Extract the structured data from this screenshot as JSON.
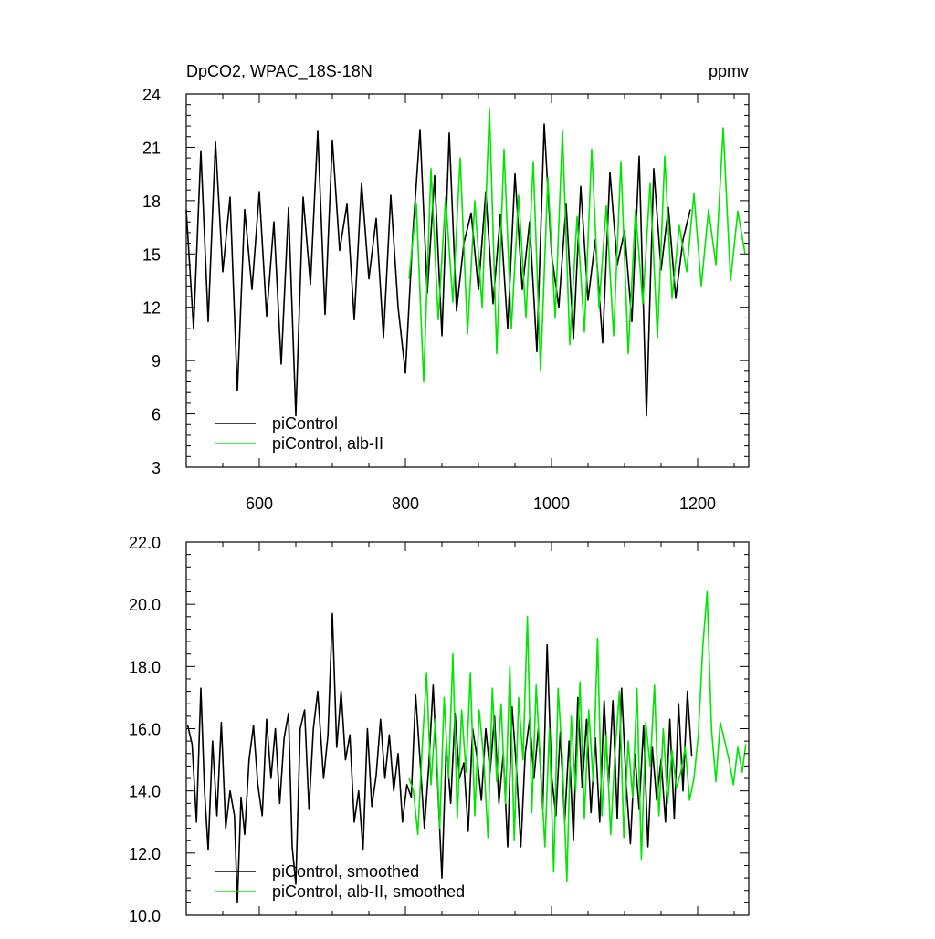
{
  "chart_data": [
    {
      "type": "line",
      "title": "DpCO2, WPAC_18S-18N",
      "units": "ppmv",
      "xlabel": "",
      "ylabel": "",
      "xlim": [
        500,
        1270
      ],
      "ylim": [
        3,
        24
      ],
      "xticks": [
        600,
        800,
        1000,
        1200
      ],
      "xtick_labels": [
        "600",
        "800",
        "1000",
        "1200"
      ],
      "yticks": [
        3,
        6,
        9,
        12,
        15,
        18,
        21,
        24
      ],
      "ytick_labels": [
        "3",
        "6",
        "9",
        "12",
        "15",
        "18",
        "21",
        "24"
      ],
      "legend_position": "bottom-left",
      "series": [
        {
          "name": "piControl",
          "color": "#000000",
          "x": [
            500,
            510,
            520,
            530,
            540,
            550,
            560,
            570,
            580,
            590,
            600,
            610,
            620,
            630,
            640,
            650,
            660,
            670,
            680,
            690,
            700,
            710,
            720,
            730,
            740,
            750,
            760,
            770,
            780,
            790,
            800,
            810,
            820,
            830,
            840,
            850,
            860,
            870,
            880,
            890,
            900,
            910,
            920,
            930,
            940,
            950,
            960,
            970,
            980,
            990,
            1000,
            1010,
            1020,
            1030,
            1040,
            1050,
            1060,
            1070,
            1080,
            1090,
            1100,
            1110,
            1120,
            1130,
            1140,
            1150,
            1160,
            1170,
            1180,
            1190
          ],
          "y": [
            17.5,
            10.8,
            20.8,
            11.2,
            21.3,
            14.0,
            18.2,
            7.3,
            17.5,
            13.0,
            18.5,
            11.5,
            16.8,
            8.8,
            17.6,
            5.9,
            18.2,
            13.3,
            21.9,
            11.6,
            21.4,
            15.2,
            17.8,
            11.3,
            19.0,
            13.6,
            17.0,
            10.3,
            18.3,
            12.0,
            8.3,
            16.0,
            22.0,
            12.8,
            19.4,
            10.4,
            21.8,
            11.8,
            15.6,
            17.3,
            13.0,
            18.5,
            12.2,
            17.2,
            10.8,
            19.5,
            13.0,
            16.8,
            9.5,
            22.3,
            15.0,
            12.0,
            17.8,
            10.2,
            18.8,
            12.4,
            15.8,
            10.0,
            19.6,
            14.4,
            16.3,
            11.2,
            20.5,
            5.9,
            19.8,
            14.1,
            17.6,
            12.5,
            15.8,
            17.5
          ]
        },
        {
          "name": "piControl, alb-II",
          "color": "#00e600",
          "x": [
            805,
            815,
            825,
            835,
            845,
            855,
            865,
            875,
            885,
            895,
            905,
            915,
            925,
            935,
            945,
            955,
            965,
            975,
            985,
            995,
            1005,
            1015,
            1025,
            1035,
            1045,
            1055,
            1065,
            1075,
            1085,
            1095,
            1105,
            1115,
            1125,
            1135,
            1145,
            1155,
            1165,
            1175,
            1185,
            1195,
            1205,
            1215,
            1225,
            1235,
            1245,
            1255,
            1265
          ],
          "y": [
            13.6,
            17.8,
            7.8,
            19.8,
            11.3,
            18.2,
            12.3,
            20.4,
            10.5,
            18.0,
            12.0,
            23.2,
            9.4,
            20.9,
            10.8,
            18.3,
            11.4,
            20.2,
            8.4,
            19.3,
            11.4,
            21.9,
            9.9,
            17.1,
            10.6,
            20.9,
            12.0,
            17.7,
            10.4,
            20.2,
            9.4,
            17.5,
            12.2,
            19.0,
            10.3,
            20.5,
            12.5,
            16.6,
            14.0,
            18.4,
            13.2,
            17.5,
            14.4,
            22.1,
            13.5,
            17.4,
            15.0
          ]
        }
      ]
    },
    {
      "type": "line",
      "title": "",
      "xlabel": "",
      "ylabel": "",
      "xlim": [
        500,
        1270
      ],
      "ylim": [
        10,
        22
      ],
      "xticks": [
        600,
        800,
        1000,
        1200
      ],
      "yticks": [
        10,
        12,
        14,
        16,
        18,
        20,
        22
      ],
      "ytick_labels": [
        "10.0",
        "12.0",
        "14.0",
        "16.0",
        "18.0",
        "20.0",
        "22.0"
      ],
      "legend_position": "bottom-left",
      "series": [
        {
          "name": "piControl, smoothed",
          "color": "#000000",
          "x": [
            502,
            508,
            514,
            520,
            525,
            530,
            536,
            542,
            548,
            554,
            560,
            566,
            570,
            575,
            580,
            586,
            592,
            598,
            604,
            610,
            616,
            622,
            628,
            634,
            640,
            645,
            650,
            656,
            662,
            668,
            674,
            680,
            688,
            694,
            700,
            706,
            712,
            718,
            724,
            730,
            736,
            742,
            748,
            754,
            760,
            766,
            772,
            778,
            784,
            790,
            796,
            802,
            808,
            814,
            820,
            826,
            832,
            838,
            844,
            850,
            856,
            862,
            868,
            874,
            880,
            886,
            892,
            898,
            904,
            910,
            916,
            922,
            928,
            934,
            940,
            946,
            952,
            958,
            964,
            970,
            976,
            982,
            988,
            994,
            1000,
            1006,
            1012,
            1018,
            1024,
            1030,
            1036,
            1042,
            1048,
            1054,
            1060,
            1066,
            1072,
            1078,
            1084,
            1090,
            1096,
            1102,
            1108,
            1114,
            1120,
            1126,
            1132,
            1138,
            1144,
            1150,
            1156,
            1162,
            1168,
            1174,
            1180,
            1186,
            1192
          ],
          "y": [
            16.1,
            15.5,
            13.0,
            17.3,
            14.0,
            12.1,
            15.6,
            13.2,
            16.2,
            12.8,
            14.0,
            13.2,
            10.4,
            13.8,
            12.6,
            15.0,
            16.1,
            14.2,
            13.2,
            16.3,
            14.4,
            16.0,
            13.6,
            15.7,
            16.5,
            12.2,
            11.0,
            16.0,
            16.6,
            13.4,
            16.0,
            17.2,
            14.4,
            15.8,
            19.7,
            15.4,
            17.2,
            15.0,
            15.8,
            13.0,
            14.0,
            12.1,
            16.0,
            13.5,
            14.5,
            16.3,
            14.4,
            15.8,
            14.0,
            15.2,
            13.0,
            14.2,
            13.8,
            17.1,
            15.0,
            12.8,
            14.8,
            17.4,
            14.3,
            11.2,
            15.5,
            13.6,
            16.5,
            14.4,
            14.9,
            12.7,
            16.0,
            15.1,
            13.7,
            16.0,
            14.6,
            16.4,
            13.6,
            15.2,
            12.2,
            16.7,
            14.7,
            12.2,
            15.2,
            16.3,
            14.4,
            16.0,
            13.4,
            18.7,
            14.5,
            13.2,
            15.9,
            13.0,
            15.6,
            12.4,
            17.0,
            14.1,
            16.3,
            13.3,
            15.7,
            13.0,
            16.9,
            14.2,
            16.9,
            13.1,
            17.3,
            14.3,
            12.3,
            15.2,
            13.4,
            16.1,
            12.2,
            15.4,
            13.7,
            15.0,
            13.0,
            16.3,
            13.1,
            16.8,
            14.0,
            17.2,
            15.1
          ]
        },
        {
          "name": "piControl, alb-II, smoothed",
          "color": "#00e600",
          "x": [
            805,
            811,
            817,
            823,
            829,
            835,
            841,
            847,
            853,
            859,
            865,
            871,
            877,
            883,
            889,
            895,
            901,
            907,
            913,
            919,
            925,
            931,
            937,
            943,
            949,
            955,
            961,
            967,
            973,
            979,
            985,
            991,
            997,
            1003,
            1009,
            1015,
            1021,
            1027,
            1033,
            1039,
            1045,
            1051,
            1057,
            1063,
            1069,
            1075,
            1081,
            1087,
            1093,
            1099,
            1105,
            1111,
            1117,
            1123,
            1129,
            1135,
            1141,
            1147,
            1153,
            1159,
            1165,
            1171,
            1177,
            1183,
            1189,
            1195,
            1201,
            1207,
            1213,
            1219,
            1225,
            1231,
            1237,
            1243,
            1249,
            1255,
            1261,
            1266
          ],
          "y": [
            14.4,
            14.0,
            12.6,
            15.4,
            17.8,
            14.2,
            16.3,
            12.8,
            17.0,
            14.4,
            18.4,
            13.1,
            16.6,
            14.6,
            17.8,
            13.2,
            16.6,
            15.1,
            12.5,
            17.3,
            14.3,
            16.8,
            13.6,
            18.0,
            12.4,
            17.0,
            15.0,
            19.6,
            13.3,
            17.4,
            14.8,
            12.2,
            16.0,
            11.4,
            17.3,
            15.0,
            11.1,
            16.4,
            14.0,
            17.5,
            13.1,
            16.6,
            14.3,
            18.9,
            13.2,
            15.8,
            12.6,
            15.3,
            17.2,
            12.5,
            15.6,
            13.8,
            17.3,
            11.8,
            16.2,
            14.8,
            17.4,
            13.2,
            16.0,
            13.6,
            15.3,
            14.1,
            14.6,
            15.4,
            13.7,
            14.4,
            15.8,
            18.6,
            20.4,
            16.0,
            14.3,
            16.2,
            15.6,
            15.0,
            14.2,
            15.4,
            14.6,
            15.5
          ]
        }
      ]
    }
  ]
}
